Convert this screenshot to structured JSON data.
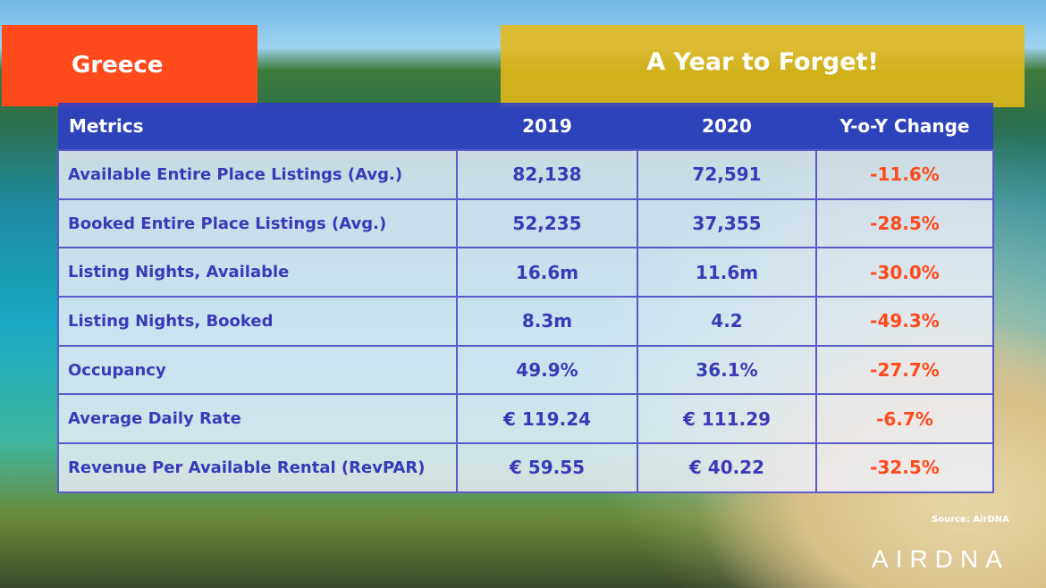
{
  "country": "Greece",
  "title": "A Year to Forget!",
  "table": {
    "headers": [
      "Metrics",
      "2019",
      "2020",
      "Y-o-Y Change"
    ],
    "rows": [
      [
        "Available Entire Place Listings (Avg.)",
        "82,138",
        "72,591",
        "-11.6%"
      ],
      [
        "Booked Entire Place Listings (Avg.)",
        "52,235",
        "37,355",
        "-28.5%"
      ],
      [
        "Listing Nights, Available",
        "16.6m",
        "11.6m",
        "-30.0%"
      ],
      [
        "Listing Nights, Booked",
        "8.3m",
        "4.2",
        "-49.3%"
      ],
      [
        "Occupancy",
        "49.9%",
        "36.1%",
        "-27.7%"
      ],
      [
        "Average Daily Rate",
        "€ 119.24",
        "€ 111.29",
        "-6.7%"
      ],
      [
        "Revenue Per Available Rental (RevPAR)",
        "€ 59.55",
        "€ 40.22",
        "-32.5%"
      ]
    ]
  },
  "source": "Source: AirDNA",
  "logo": "AIRDNA",
  "colors": {
    "accent_orange": "#ff4a1c",
    "title_yellow": "#e5b618",
    "header_blue": "#2e3cc8",
    "text_blue": "#3a3ab8"
  }
}
